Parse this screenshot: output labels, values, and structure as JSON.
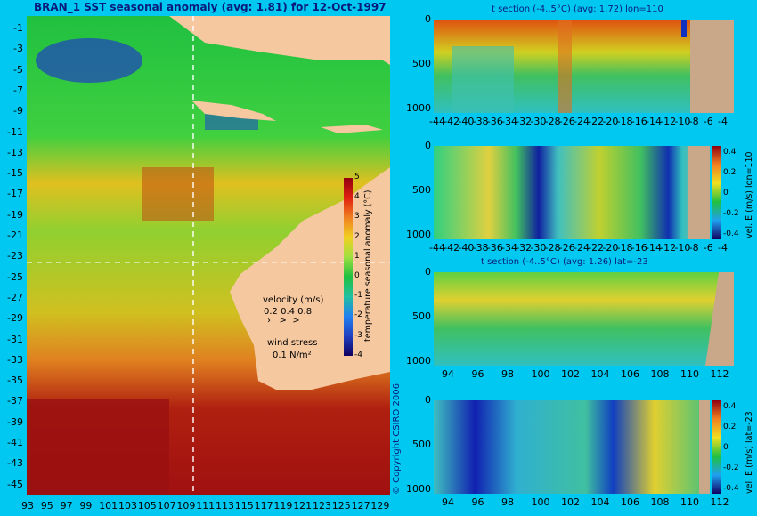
{
  "chart_data": [
    {
      "type": "heatmap",
      "title": "BRAN_1  SST seasonal anomaly (avg: 1.81) for 12-Oct-1997",
      "x_ticks": [
        "93",
        "95",
        "97",
        "99",
        "101",
        "103",
        "105",
        "107",
        "109",
        "111",
        "113",
        "115",
        "117",
        "119",
        "121",
        "123",
        "125",
        "127",
        "129"
      ],
      "y_ticks": [
        "-1",
        "-3",
        "-5",
        "-7",
        "-9",
        "-11",
        "-13",
        "-15",
        "-17",
        "-19",
        "-21",
        "-23",
        "-25",
        "-27",
        "-29",
        "-31",
        "-33",
        "-35",
        "-37",
        "-39",
        "-41",
        "-43",
        "-45"
      ],
      "xlim": [
        93,
        130
      ],
      "ylim": [
        -45,
        0
      ],
      "colorbar": {
        "label": "temperature seasonal anomaly (°C)",
        "ticks": [
          "5",
          "4",
          "3",
          "2",
          "1",
          "0",
          "-1",
          "-2",
          "-3",
          "-4"
        ],
        "range": [
          -4,
          5
        ]
      },
      "legend_velocity": {
        "title": "velocity (m/s)",
        "values": "0.2 0.4 0.8"
      },
      "legend_wind": {
        "title": "wind stress",
        "value": "0.1 N/m²"
      },
      "crosshair": {
        "lon": 110,
        "lat": -23
      }
    },
    {
      "type": "heatmap",
      "title": "t section (-4..5°C) (avg: 1.72) lon=110",
      "x_ticks": [
        "-44",
        "-42",
        "-40",
        "-38",
        "-36",
        "-34",
        "-32",
        "-30",
        "-28",
        "-26",
        "-24",
        "-22",
        "-20",
        "-18",
        "-16",
        "-14",
        "-12",
        "-10",
        "-8",
        "-6",
        "-4"
      ],
      "y_ticks": [
        "0",
        "500",
        "1000"
      ]
    },
    {
      "type": "heatmap",
      "title": "",
      "x_ticks": [
        "-44",
        "-42",
        "-40",
        "-38",
        "-36",
        "-34",
        "-32",
        "-30",
        "-28",
        "-26",
        "-24",
        "-22",
        "-20",
        "-18",
        "-16",
        "-14",
        "-12",
        "-10",
        "-8",
        "-6",
        "-4"
      ],
      "y_ticks": [
        "0",
        "500",
        "1000"
      ],
      "colorbar": {
        "label": "vel. E (m/s) lon=110",
        "ticks": [
          "0.4",
          "0.2",
          "0",
          "-0.2",
          "-0.4"
        ],
        "range": [
          -0.4,
          0.4
        ]
      }
    },
    {
      "type": "heatmap",
      "title": "t section (-4..5°C) (avg: 1.26) lat=-23",
      "x_ticks": [
        "94",
        "96",
        "98",
        "100",
        "102",
        "104",
        "106",
        "108",
        "110",
        "112"
      ],
      "y_ticks": [
        "0",
        "500",
        "1000"
      ]
    },
    {
      "type": "heatmap",
      "title": "",
      "x_ticks": [
        "94",
        "96",
        "98",
        "100",
        "102",
        "104",
        "106",
        "108",
        "110",
        "112"
      ],
      "y_ticks": [
        "0",
        "500",
        "1000"
      ],
      "colorbar": {
        "label": "vel. E (m/s) lat=-23",
        "ticks": [
          "0.4",
          "0.2",
          "0",
          "-0.2",
          "-0.4"
        ],
        "range": [
          -0.4,
          0.4
        ]
      }
    }
  ],
  "copyright": "© Copyright CSIRO 2006",
  "colors": {
    "background": "#00c8f0",
    "land": "#f5c8a0",
    "title": "#0a1a7a"
  }
}
